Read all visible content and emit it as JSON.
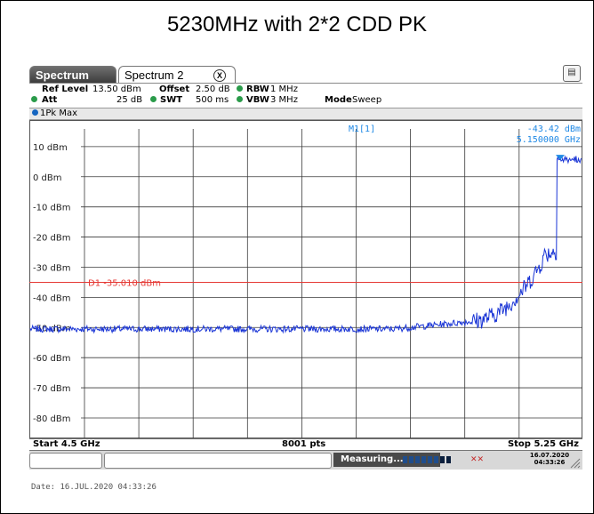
{
  "caption": "5230MHz with 2*2 CDD PK",
  "tabs": [
    {
      "label": "Spectrum"
    },
    {
      "label": "Spectrum 2"
    }
  ],
  "params": {
    "ref_level_label": "Ref Level",
    "ref_level_value": "13.50 dBm",
    "offset_label": "Offset",
    "offset_value": "2.50 dB",
    "rbw_label": "RBW",
    "rbw_value": "1 MHz",
    "att_label": "Att",
    "att_value": "25 dB",
    "swt_label": "SWT",
    "swt_value": "500 ms",
    "vbw_label": "VBW",
    "vbw_value": "3 MHz",
    "mode_label": "Mode",
    "mode_value": "Sweep"
  },
  "trace_label": "1Pk Max",
  "marker": {
    "name": "M1[1]",
    "level": "-43.42 dBm",
    "freq": "5.150000 GHz"
  },
  "display_line": {
    "label": "D1  -35.010 dBm",
    "value_dbm": -35.01
  },
  "y_ticks": [
    "10 dBm",
    "0 dBm",
    "-10 dBm",
    "-20 dBm",
    "-30 dBm",
    "-40 dBm",
    "-50 dBm",
    "-60 dBm",
    "-70 dBm",
    "-80 dBm"
  ],
  "bottom": {
    "start": "Start 4.5 GHz",
    "points": "8001 pts",
    "stop": "Stop 5.25 GHz"
  },
  "status": {
    "measuring": "Measuring...",
    "date": "16.07.2020",
    "time": "04:33:26"
  },
  "date_footer": "Date: 16.JUL.2020  04:33:26",
  "colors": {
    "trace": "#1a35d6",
    "display_line": "#e53935",
    "marker": "#1e88e5",
    "grid": "#3a3a3a"
  }
}
